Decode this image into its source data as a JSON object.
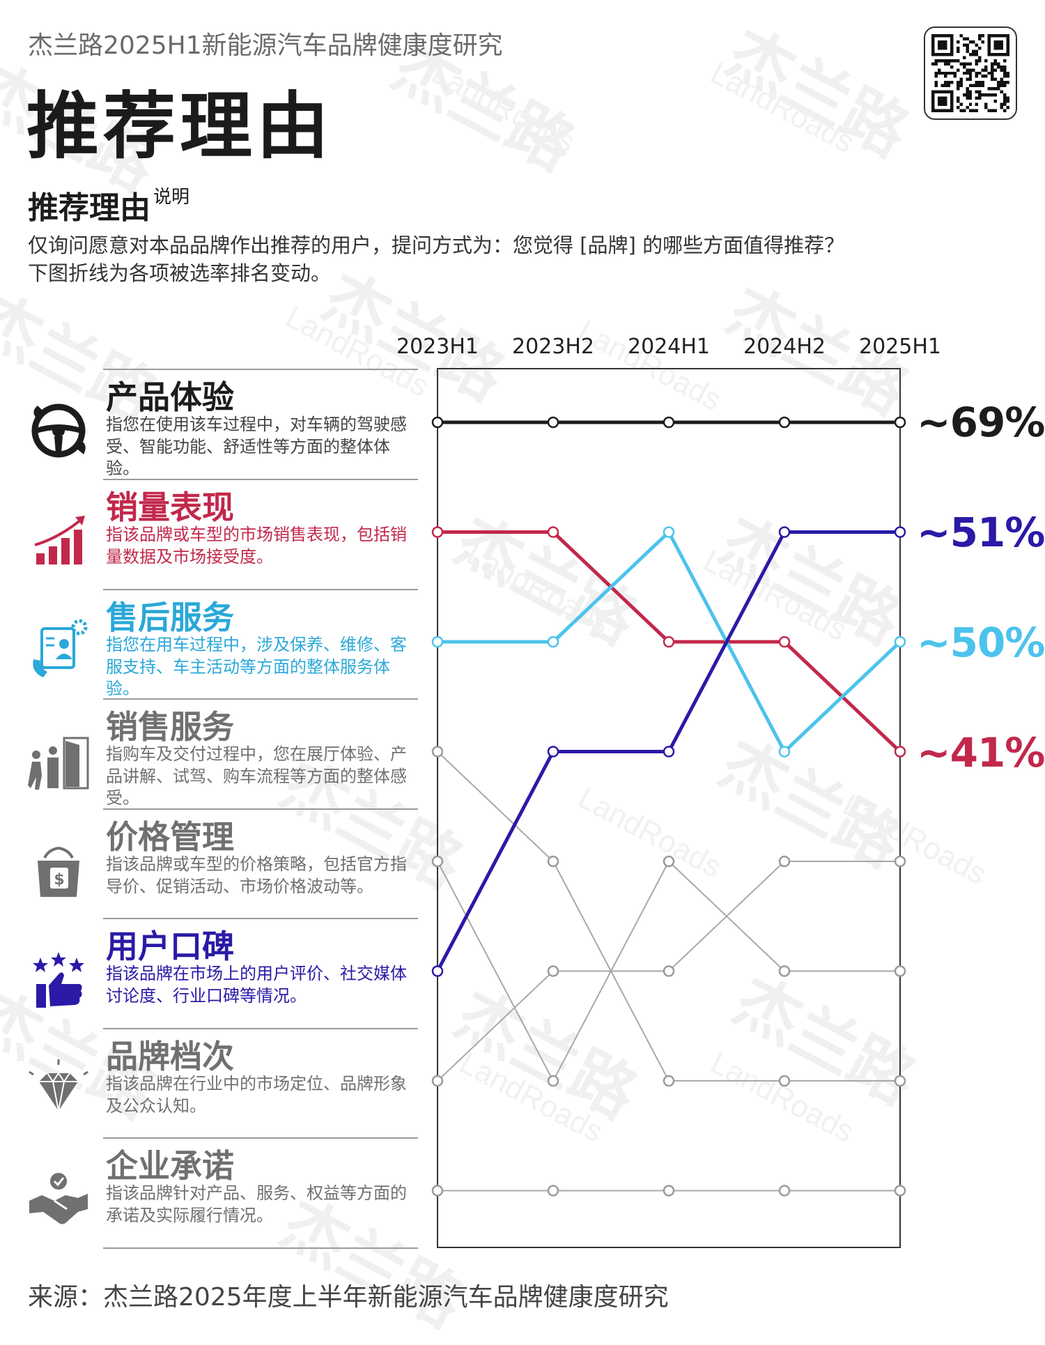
{
  "header": {
    "subtitle": "杰兰路2025H1新能源汽车品牌健康度研究",
    "title": "推荐理由"
  },
  "section": {
    "title": "推荐理由",
    "title_sup": "说明",
    "desc_line1": "仅询问愿意对本品品牌作出推荐的用户，提问方式为：您觉得 [品牌] 的哪些方面值得推荐？",
    "desc_line2": "下图折线为各项被选率排名变动。"
  },
  "watermark": {
    "cn": "杰兰路",
    "en": "LandRoads"
  },
  "source": "来源：杰兰路2025年度上半年新能源汽车品牌健康度研究",
  "colors": {
    "black": "#1c1c1c",
    "red": "#c2284b",
    "cyan": "#4cc3ec",
    "blue": "#2a1aa6",
    "gray": "#a8a8a8",
    "graytext": "#707070"
  },
  "categories": [
    {
      "name": "产品体验",
      "text": "指您在使用该车过程中，对车辆的驾驶感受、智能功能、舒适性等方面的整体体验。",
      "color": "#1c1c1c",
      "icon": "steering-wheel-icon"
    },
    {
      "name": "销量表现",
      "text": "指该品牌或车型的市场销售表现，包括销量数据及市场接受度。",
      "color": "#c2284b",
      "icon": "bar-growth-icon"
    },
    {
      "name": "售后服务",
      "text": "指您在用车过程中，涉及保养、维修、客服支持、车主活动等方面的整体服务体验。",
      "color": "#2aa8d8",
      "icon": "customer-service-icon"
    },
    {
      "name": "销售服务",
      "text": "指购车及交付过程中，您在展厅体验、产品讲解、试驾、购车流程等方面的整体感受。",
      "color": "#707070",
      "icon": "showroom-icon"
    },
    {
      "name": "价格管理",
      "text": "指该品牌或车型的价格策略，包括官方指导价、促销活动、市场价格波动等。",
      "color": "#707070",
      "icon": "price-tag-icon"
    },
    {
      "name": "用户口碑",
      "text": "指该品牌在市场上的用户评价、社交媒体讨论度、行业口碑等情况。",
      "color": "#2a1aa6",
      "icon": "thumbs-up-icon"
    },
    {
      "name": "品牌档次",
      "text": "指该品牌在行业中的市场定位、品牌形象及公众认知。",
      "color": "#707070",
      "icon": "diamond-icon"
    },
    {
      "name": "企业承诺",
      "text": "指该品牌针对产品、服务、权益等方面的承诺及实际履行情况。",
      "color": "#707070",
      "icon": "handshake-icon"
    }
  ],
  "chart_data": {
    "type": "line",
    "description": "bump chart of rank (1 = top) per period",
    "x": [
      "2023H1",
      "2023H2",
      "2024H1",
      "2024H2",
      "2025H1"
    ],
    "y_inverted": true,
    "ylim": [
      1,
      8
    ],
    "series": [
      {
        "name": "产品体验",
        "ranks": [
          1,
          1,
          1,
          1,
          1
        ],
        "color": "#1c1c1c",
        "end_label": "~69%"
      },
      {
        "name": "销量表现",
        "ranks": [
          2,
          2,
          3,
          3,
          4
        ],
        "color": "#c2284b",
        "end_label": "~41%"
      },
      {
        "name": "售后服务",
        "ranks": [
          3,
          3,
          2,
          4,
          3
        ],
        "color": "#4cc3ec",
        "end_label": "~50%"
      },
      {
        "name": "销售服务",
        "ranks": [
          4,
          5,
          7,
          7,
          7
        ],
        "color": "#a8a8a8"
      },
      {
        "name": "价格管理",
        "ranks": [
          5,
          7,
          5,
          6,
          6
        ],
        "color": "#a8a8a8"
      },
      {
        "name": "用户口碑",
        "ranks": [
          6,
          4,
          4,
          2,
          2
        ],
        "color": "#2a1aa6",
        "end_label": "~51%"
      },
      {
        "name": "品牌档次",
        "ranks": [
          7,
          6,
          6,
          5,
          5
        ],
        "color": "#a8a8a8"
      },
      {
        "name": "企业承诺",
        "ranks": [
          8,
          8,
          8,
          8,
          8
        ],
        "color": "#a8a8a8"
      }
    ]
  }
}
